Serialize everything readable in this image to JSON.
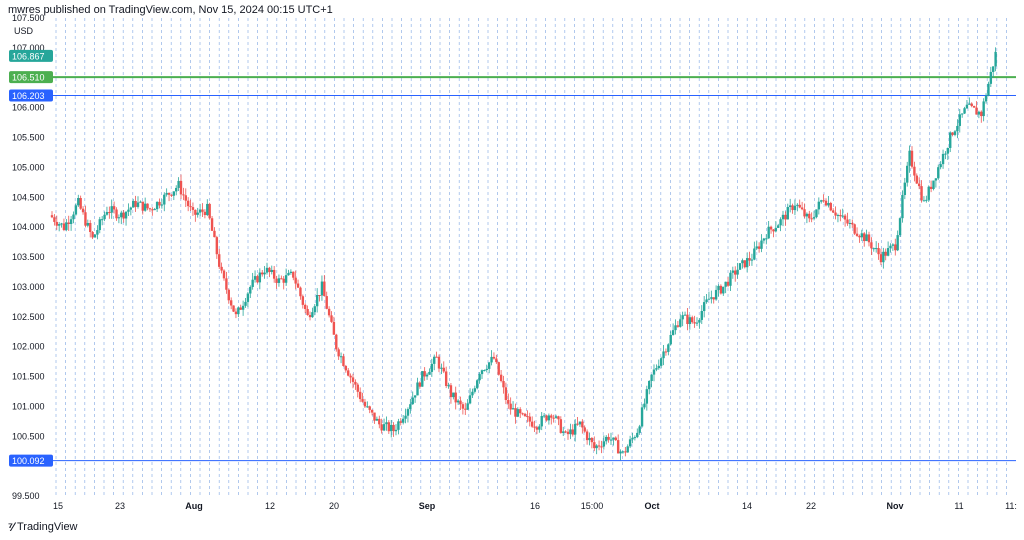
{
  "header": {
    "publisher_line": "mwres published on TradingView.com, Nov 15, 2024 00:15 UTC+1"
  },
  "brand": {
    "name": "TradingView"
  },
  "colors": {
    "up": "#26a69a",
    "down": "#ef5350",
    "green_line": "#4caf50",
    "blue_line": "#2962ff",
    "last_price_badge": "#26a69a",
    "grid_dash": "#8fb2e6"
  },
  "chart_data": {
    "type": "candlestick",
    "currency": "USD",
    "ylim": [
      99.5,
      107.5
    ],
    "y_ticks": [
      "99.500",
      "100.500",
      "101.000",
      "101.500",
      "102.000",
      "102.500",
      "103.000",
      "103.500",
      "104.000",
      "104.500",
      "105.000",
      "105.500",
      "106.000",
      "107.000",
      "107.500"
    ],
    "x_ticks": [
      {
        "label": "15",
        "bold": false
      },
      {
        "label": "23",
        "bold": false
      },
      {
        "label": "Aug",
        "bold": true
      },
      {
        "label": "12",
        "bold": false
      },
      {
        "label": "20",
        "bold": false
      },
      {
        "label": "Sep",
        "bold": true
      },
      {
        "label": "16",
        "bold": false
      },
      {
        "label": "15:00",
        "bold": false
      },
      {
        "label": "Oct",
        "bold": true
      },
      {
        "label": "14",
        "bold": false
      },
      {
        "label": "22",
        "bold": false
      },
      {
        "label": "Nov",
        "bold": true
      },
      {
        "label": "11",
        "bold": false
      },
      {
        "label": "11:",
        "bold": false
      }
    ],
    "horizontal_levels": [
      {
        "value": 106.51,
        "label": "106.510",
        "color": "#4caf50"
      },
      {
        "value": 106.203,
        "label": "106.203",
        "color": "#2962ff"
      },
      {
        "value": 100.092,
        "label": "100.092",
        "color": "#2962ff"
      }
    ],
    "last_price": {
      "value": 106.867,
      "label": "106.867"
    },
    "close_path": [
      104.2,
      104.0,
      104.4,
      103.8,
      104.3,
      104.2,
      104.4,
      104.3,
      104.5,
      104.7,
      104.2,
      104.3,
      103.2,
      102.5,
      103.0,
      103.3,
      103.1,
      103.2,
      102.5,
      103.0,
      102.0,
      101.5,
      101.0,
      100.7,
      100.6,
      101.0,
      101.5,
      101.8,
      101.2,
      100.9,
      101.6,
      101.8,
      101.0,
      100.8,
      100.7,
      100.9,
      100.5,
      100.7,
      100.3,
      100.5,
      100.2,
      100.6,
      101.5,
      102.0,
      102.5,
      102.4,
      102.8,
      103.0,
      103.3,
      103.5,
      103.9,
      104.1,
      104.4,
      104.1,
      104.5,
      104.2,
      104.0,
      103.8,
      103.5,
      103.7,
      105.2,
      104.4,
      105.0,
      105.6,
      106.0,
      105.9,
      106.9
    ]
  }
}
